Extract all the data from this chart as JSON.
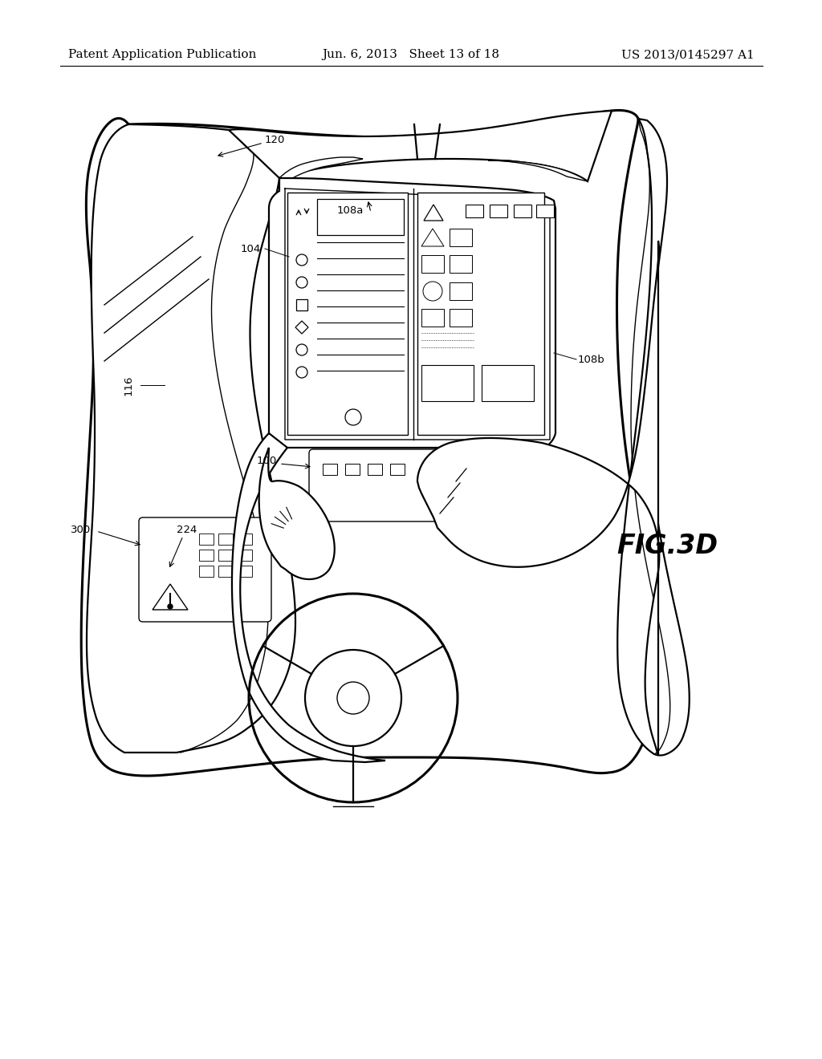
{
  "title_left": "Patent Application Publication",
  "title_center": "Jun. 6, 2013   Sheet 13 of 18",
  "title_right": "US 2013/0145297 A1",
  "fig_label": "FIG.3D",
  "background_color": "#ffffff",
  "line_color": "#000000",
  "header_fontsize": 11,
  "label_fontsize": 9.5,
  "fig_label_fontsize": 24
}
